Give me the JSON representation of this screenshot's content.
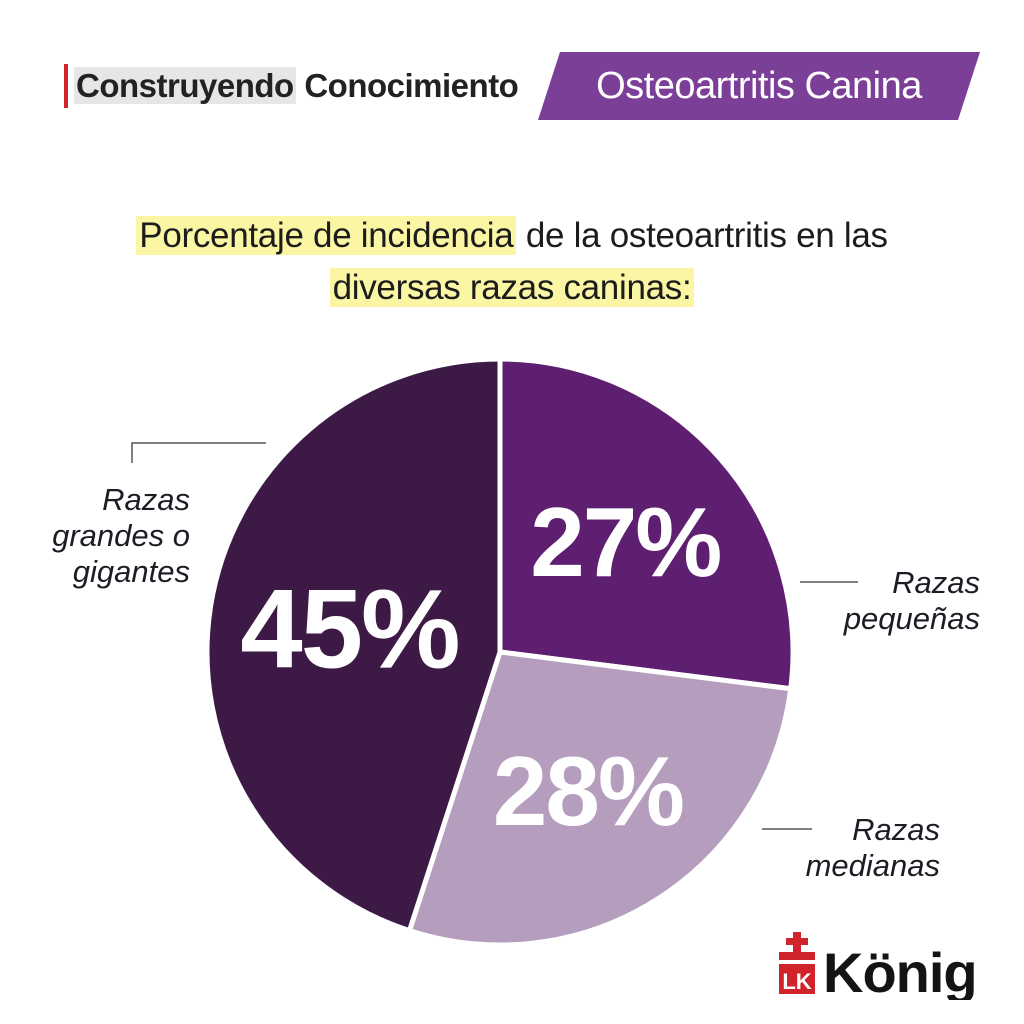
{
  "header": {
    "brand_part1": "Construyendo",
    "brand_part2": "Conocimiento",
    "topic": "Osteoartritis Canina"
  },
  "title": {
    "highlight_1": "Porcentaje de incidencia",
    "rest_1": " de la osteoartritis en las",
    "highlight_2": "diversas razas caninas:"
  },
  "logo": {
    "text": "König"
  },
  "colors": {
    "accent_purple": "#7b3f98",
    "brand_red": "#d0232a",
    "title_highlight": "#fbf6a4"
  },
  "chart_data": {
    "type": "pie",
    "title": "Porcentaje de incidencia de la osteoartritis en las diversas razas caninas:",
    "slices": [
      {
        "label": "Razas pequeñas",
        "value": 27,
        "display": "27%",
        "color": "#5e1f70",
        "label_color": "#ffffff"
      },
      {
        "label": "Razas medianas",
        "value": 28,
        "display": "28%",
        "color": "#b59dbd",
        "label_color": "#ffffff"
      },
      {
        "label": "Razas grandes o gigantes",
        "value": 45,
        "display": "45%",
        "color": "#3d1946",
        "label_color": "#ffffff"
      }
    ],
    "category_labels": [
      [
        "Razas",
        "pequeñas"
      ],
      [
        "Razas",
        "medianas"
      ],
      [
        "Razas",
        "grandes o",
        "gigantes"
      ]
    ],
    "start_angle": "12 o'clock",
    "direction": "clockwise",
    "legend": "none"
  }
}
